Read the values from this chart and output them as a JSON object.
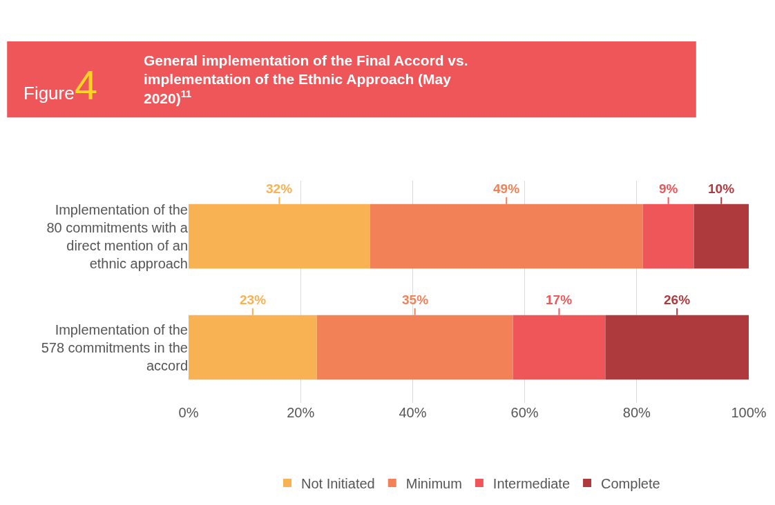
{
  "chart_data": {
    "type": "bar",
    "orientation": "horizontal",
    "stacked": true,
    "title": "General implementation of the Final Accord vs. implementation of the Ethnic Approach (May 2020)$^{11}$",
    "subtitle": "Figure4",
    "categories": [
      "Implementation of the 80 commitments with a direct mention of an ethnic approach",
      "Implementation of the 578 commitments in the accord"
    ],
    "series": [
      {
        "name": "Not Initiated",
        "color": "#f9b253",
        "values": [
          32.4,
          22.9
        ],
        "value_labels": [
          "32%",
          "23%"
        ]
      },
      {
        "name": "Minimum",
        "color": "#f28157",
        "values": [
          48.7,
          35.0
        ],
        "value_labels": [
          "49%",
          "35%"
        ]
      },
      {
        "name": "Intermediate",
        "color": "#ef5659",
        "values": [
          9.1,
          16.5
        ],
        "value_labels": [
          "9%",
          "17%"
        ]
      },
      {
        "name": "Complete",
        "color": "#ae3a3e",
        "values": [
          9.8,
          25.6
        ],
        "value_labels": [
          "10%",
          "26%"
        ]
      }
    ],
    "xlim": [
      0,
      100
    ],
    "xticks": [
      {
        "value": 0,
        "label": "0%"
      },
      {
        "value": 20,
        "label": "20%"
      },
      {
        "value": 40,
        "label": "40%"
      },
      {
        "value": 60,
        "label": "60%"
      },
      {
        "value": 80,
        "label": "80%"
      },
      {
        "value": 100,
        "label": "100%"
      }
    ],
    "grid": "x",
    "legend": "bottom"
  }
}
